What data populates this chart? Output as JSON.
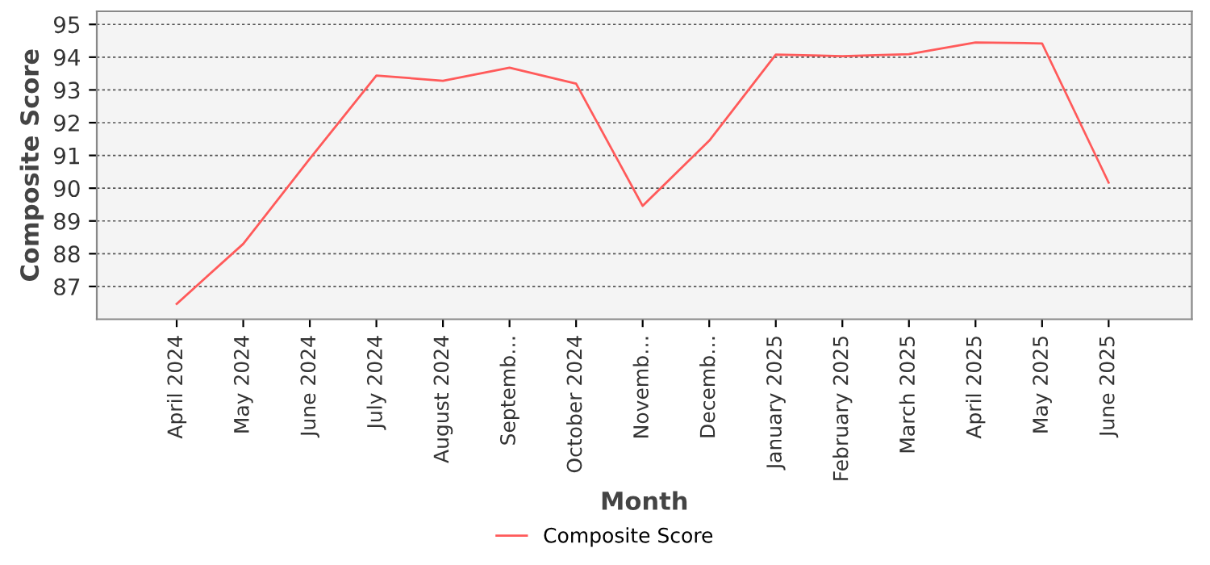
{
  "chart_data": {
    "type": "line",
    "xlabel": "Month",
    "ylabel": "Composite Score",
    "categories": [
      "April 2024",
      "May 2024",
      "June 2024",
      "July 2024",
      "August 2024",
      "Septemb…",
      "October 2024",
      "Novemb…",
      "Decemb…",
      "January 2025",
      "February 2025",
      "March 2025",
      "April 2025",
      "May 2025",
      "June 2025"
    ],
    "series": [
      {
        "name": "Composite Score",
        "color": "#ff5a5a",
        "values": [
          86.47,
          88.3,
          90.9,
          93.44,
          93.28,
          93.68,
          93.19,
          89.46,
          91.45,
          94.08,
          94.03,
          94.09,
          94.45,
          94.42,
          90.17
        ]
      }
    ],
    "ylim": [
      86,
      95.4
    ],
    "yticks": [
      87,
      88,
      89,
      90,
      91,
      92,
      93,
      94,
      95
    ],
    "grid": "y",
    "legend": "bottom",
    "marker": "none",
    "line_style": "solid"
  }
}
